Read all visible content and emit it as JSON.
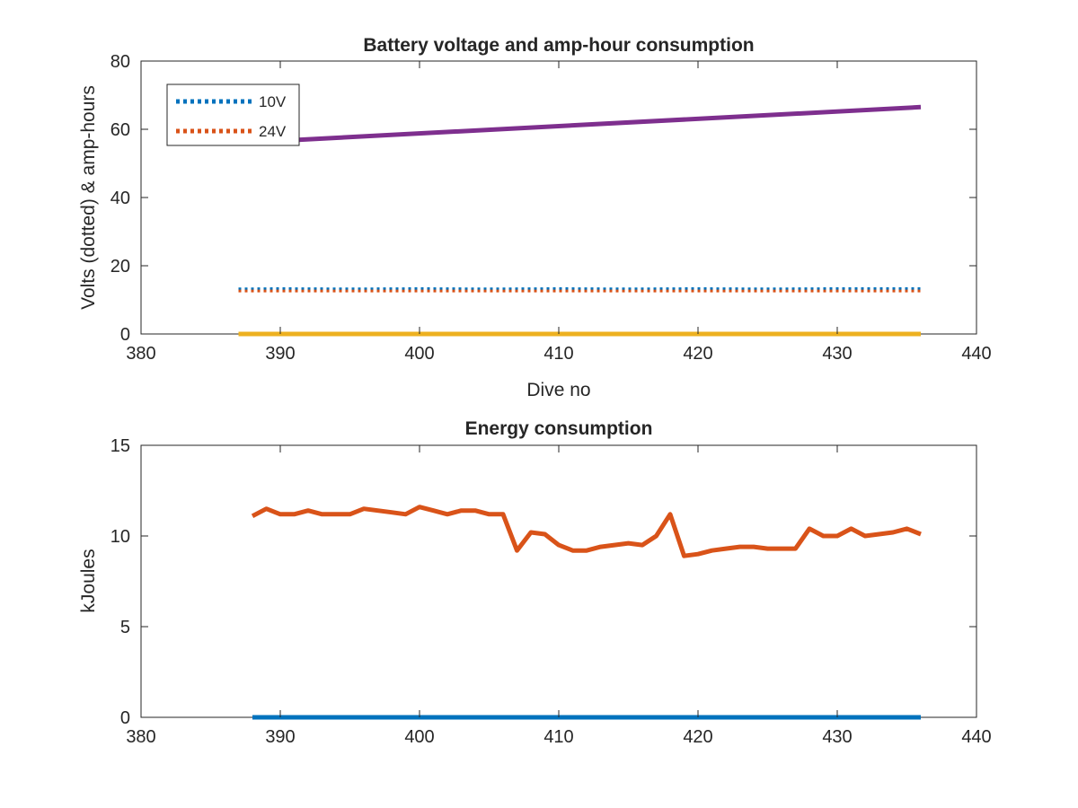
{
  "chart_data": [
    {
      "type": "line",
      "title": "Battery voltage and amp-hour consumption",
      "xlabel": "Dive no",
      "ylabel": "Volts (dotted) & amp-hours",
      "xlim": [
        380,
        440
      ],
      "ylim": [
        0,
        80
      ],
      "xticks": [
        380,
        390,
        400,
        410,
        420,
        430,
        440
      ],
      "yticks": [
        0,
        20,
        40,
        60,
        80
      ],
      "legend": {
        "placement": "top-left",
        "entries": [
          "10V",
          "24V"
        ]
      },
      "series": [
        {
          "name": "10V",
          "color": "#0072BD",
          "style": "dotted",
          "x": [
            387,
            390,
            395,
            400,
            405,
            410,
            415,
            420,
            425,
            430,
            436
          ],
          "y": [
            13.2,
            13.3,
            13.2,
            13.3,
            13.2,
            13.3,
            13.2,
            13.3,
            13.2,
            13.3,
            13.3
          ]
        },
        {
          "name": "24V",
          "color": "#D95319",
          "style": "dotted",
          "x": [
            387,
            390,
            395,
            400,
            405,
            410,
            415,
            420,
            425,
            430,
            436
          ],
          "y": [
            12.6,
            12.6,
            12.6,
            12.6,
            12.6,
            12.6,
            12.6,
            12.6,
            12.6,
            12.6,
            12.6
          ]
        },
        {
          "color": "#EDB120",
          "style": "solid",
          "x": [
            387,
            436
          ],
          "y": [
            0,
            0
          ]
        },
        {
          "color": "#7E2F8E",
          "style": "solid",
          "x": [
            387,
            436
          ],
          "y": [
            56,
            66.5
          ]
        }
      ]
    },
    {
      "type": "line",
      "title": "Energy consumption",
      "xlabel": "",
      "ylabel": "kJoules",
      "xlim": [
        380,
        440
      ],
      "ylim": [
        0,
        15
      ],
      "xticks": [
        380,
        390,
        400,
        410,
        420,
        430,
        440
      ],
      "yticks": [
        0,
        5,
        10,
        15
      ],
      "series": [
        {
          "color": "#0072BD",
          "style": "solid",
          "x": [
            388,
            436
          ],
          "y": [
            0,
            0
          ]
        },
        {
          "color": "#D95319",
          "style": "solid",
          "x": [
            388,
            389,
            390,
            391,
            392,
            393,
            394,
            395,
            396,
            397,
            398,
            399,
            400,
            401,
            402,
            403,
            404,
            405,
            406,
            407,
            408,
            409,
            410,
            411,
            412,
            413,
            414,
            415,
            416,
            417,
            418,
            419,
            420,
            421,
            422,
            423,
            424,
            425,
            426,
            427,
            428,
            429,
            430,
            431,
            432,
            433,
            434,
            435,
            436
          ],
          "y": [
            11.1,
            11.5,
            11.2,
            11.2,
            11.4,
            11.2,
            11.2,
            11.2,
            11.5,
            11.4,
            11.3,
            11.2,
            11.6,
            11.4,
            11.2,
            11.4,
            11.4,
            11.2,
            11.2,
            9.2,
            10.2,
            10.1,
            9.5,
            9.2,
            9.2,
            9.4,
            9.5,
            9.6,
            9.5,
            10.0,
            11.2,
            8.9,
            9.0,
            9.2,
            9.3,
            9.4,
            9.4,
            9.3,
            9.3,
            9.3,
            10.4,
            10.0,
            10.0,
            10.4,
            10.0,
            10.1,
            10.2,
            10.4,
            10.1
          ]
        }
      ]
    }
  ]
}
